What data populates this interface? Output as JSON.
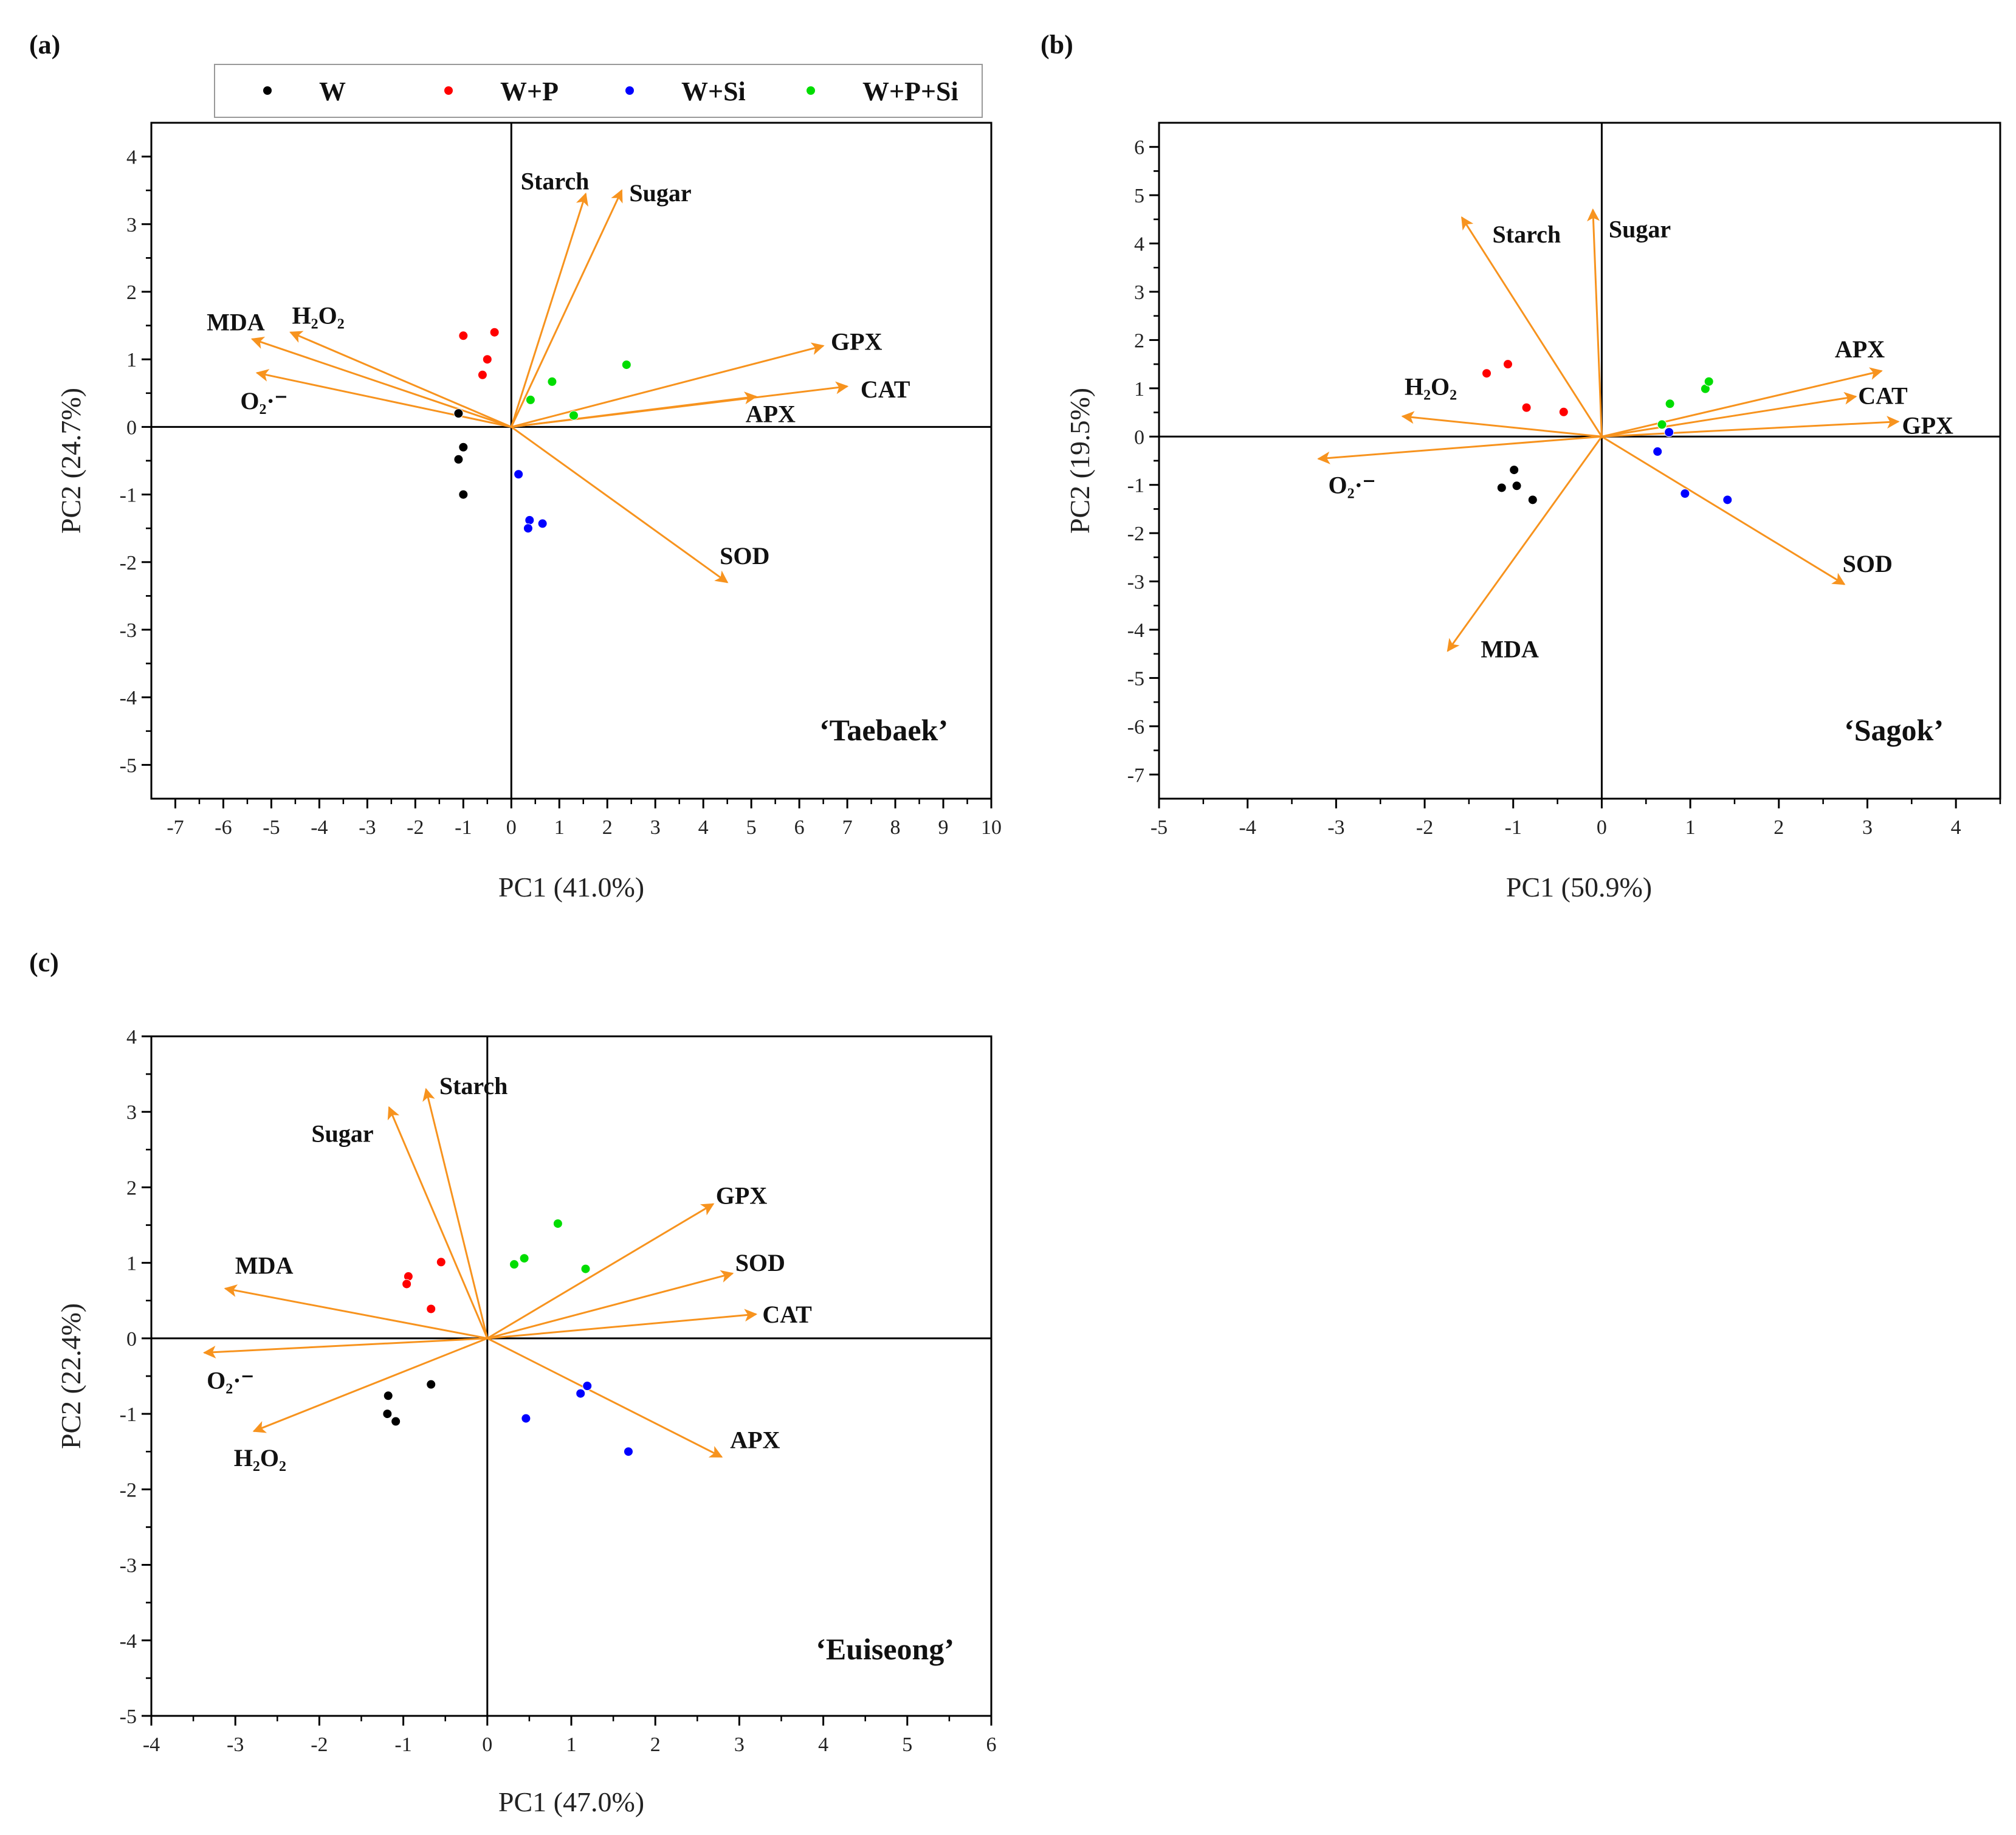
{
  "legend": {
    "entries": [
      {
        "label": "W",
        "color": "#000000"
      },
      {
        "label": "W+P",
        "color": "#FF0000"
      },
      {
        "label": "W+Si",
        "color": "#0000FF"
      },
      {
        "label": "W+P+Si",
        "color": "#00DD00"
      }
    ]
  },
  "arrow_color": "#F7931E",
  "chart_data": [
    {
      "type": "scatter",
      "panel_label": "(a)",
      "cultivar": "‘Taebaek’",
      "xlabel": "PC1 (41.0%)",
      "ylabel": "PC2 (24.7%)",
      "xlim": [
        -7.5,
        10
      ],
      "ylim": [
        -5.5,
        4.5
      ],
      "xticks": [
        -7,
        -6,
        -5,
        -4,
        -3,
        -2,
        -1,
        0,
        1,
        2,
        3,
        4,
        5,
        6,
        7,
        8,
        9,
        10
      ],
      "yticks": [
        -5,
        -4,
        -3,
        -2,
        -1,
        0,
        1,
        2,
        3,
        4
      ],
      "loadings": [
        {
          "name": "Starch",
          "x": 1.55,
          "y": 3.45
        },
        {
          "name": "Sugar",
          "x": 2.3,
          "y": 3.5
        },
        {
          "name": "MDA",
          "x": -5.4,
          "y": 1.3
        },
        {
          "name": "H₂O₂",
          "x": -4.6,
          "y": 1.4
        },
        {
          "name": "O₂·⁻",
          "x": -5.3,
          "y": 0.8
        },
        {
          "name": "GPX",
          "x": 6.5,
          "y": 1.2
        },
        {
          "name": "CAT",
          "x": 7.0,
          "y": 0.6
        },
        {
          "name": "APX",
          "x": 5.1,
          "y": 0.45
        },
        {
          "name": "SOD",
          "x": 4.5,
          "y": -2.3
        }
      ],
      "series": [
        {
          "name": "W",
          "points": [
            [
              -1.1,
              0.2
            ],
            [
              -1.0,
              -0.3
            ],
            [
              -1.1,
              -0.48
            ],
            [
              -1.0,
              -1.0
            ]
          ]
        },
        {
          "name": "W+P",
          "points": [
            [
              -1.0,
              1.35
            ],
            [
              -0.35,
              1.4
            ],
            [
              -0.5,
              1.0
            ],
            [
              -0.6,
              0.77
            ]
          ]
        },
        {
          "name": "W+Si",
          "points": [
            [
              0.15,
              -0.7
            ],
            [
              0.38,
              -1.38
            ],
            [
              0.35,
              -1.5
            ],
            [
              0.65,
              -1.43
            ]
          ]
        },
        {
          "name": "W+P+Si",
          "points": [
            [
              0.4,
              0.4
            ],
            [
              0.85,
              0.67
            ],
            [
              1.3,
              0.17
            ],
            [
              2.4,
              0.92
            ]
          ]
        }
      ]
    },
    {
      "type": "scatter",
      "panel_label": "(b)",
      "cultivar": "‘Sagok’",
      "xlabel": "PC1 (50.9%)",
      "ylabel": "PC2 (19.5%)",
      "xlim": [
        -5,
        4.5
      ],
      "ylim": [
        -7.5,
        6.5
      ],
      "xticks": [
        -5,
        -4,
        -3,
        -2,
        -1,
        0,
        1,
        2,
        3,
        4
      ],
      "yticks": [
        -7,
        -6,
        -5,
        -4,
        -3,
        -2,
        -1,
        0,
        1,
        2,
        3,
        4,
        5,
        6
      ],
      "loadings": [
        {
          "name": "Starch",
          "x": -1.58,
          "y": 4.54
        },
        {
          "name": "Sugar",
          "x": -0.1,
          "y": 4.7
        },
        {
          "name": "H₂O₂",
          "x": -2.25,
          "y": 0.42
        },
        {
          "name": "O₂·⁻",
          "x": -3.2,
          "y": -0.46
        },
        {
          "name": "MDA",
          "x": -1.74,
          "y": -4.44
        },
        {
          "name": "APX",
          "x": 3.16,
          "y": 1.36
        },
        {
          "name": "CAT",
          "x": 2.87,
          "y": 0.83
        },
        {
          "name": "GPX",
          "x": 3.35,
          "y": 0.31
        },
        {
          "name": "SOD",
          "x": 2.74,
          "y": -3.06
        }
      ],
      "series": [
        {
          "name": "W",
          "points": [
            [
              -0.99,
              -0.69
            ],
            [
              -1.13,
              -1.06
            ],
            [
              -0.96,
              -1.02
            ],
            [
              -0.78,
              -1.31
            ]
          ]
        },
        {
          "name": "W+P",
          "points": [
            [
              -1.3,
              1.31
            ],
            [
              -1.06,
              1.5
            ],
            [
              -0.85,
              0.6
            ],
            [
              -0.43,
              0.51
            ]
          ]
        },
        {
          "name": "W+Si",
          "points": [
            [
              0.76,
              0.09
            ],
            [
              0.63,
              -0.31
            ],
            [
              0.94,
              -1.18
            ],
            [
              1.42,
              -1.31
            ]
          ]
        },
        {
          "name": "W+P+Si",
          "points": [
            [
              0.68,
              0.25
            ],
            [
              0.77,
              0.68
            ],
            [
              1.17,
              0.99
            ],
            [
              1.21,
              1.14
            ]
          ]
        }
      ]
    },
    {
      "type": "scatter",
      "panel_label": "(c)",
      "cultivar": "‘Euiseong’",
      "xlabel": "PC1 (47.0%)",
      "ylabel": "PC2 (22.4%)",
      "xlim": [
        -4,
        6
      ],
      "ylim": [
        -5,
        4
      ],
      "xticks": [
        -4,
        -3,
        -2,
        -1,
        0,
        1,
        2,
        3,
        4,
        5,
        6
      ],
      "yticks": [
        -5,
        -4,
        -3,
        -2,
        -1,
        0,
        1,
        2,
        3,
        4
      ],
      "loadings": [
        {
          "name": "Starch",
          "x": -0.73,
          "y": 3.3
        },
        {
          "name": "Sugar",
          "x": -1.17,
          "y": 3.06
        },
        {
          "name": "MDA",
          "x": -3.12,
          "y": 0.66
        },
        {
          "name": "O₂·⁻",
          "x": -3.37,
          "y": -0.19
        },
        {
          "name": "H₂O₂",
          "x": -2.78,
          "y": -1.23
        },
        {
          "name": "GPX",
          "x": 2.69,
          "y": 1.78
        },
        {
          "name": "SOD",
          "x": 2.92,
          "y": 0.86
        },
        {
          "name": "CAT",
          "x": 3.2,
          "y": 0.32
        },
        {
          "name": "APX",
          "x": 2.79,
          "y": -1.57
        }
      ],
      "series": [
        {
          "name": "W",
          "points": [
            [
              -0.67,
              -0.61
            ],
            [
              -1.18,
              -0.76
            ],
            [
              -1.19,
              -1.0
            ],
            [
              -1.09,
              -1.1
            ]
          ]
        },
        {
          "name": "W+P",
          "points": [
            [
              -0.55,
              1.01
            ],
            [
              -0.94,
              0.82
            ],
            [
              -0.96,
              0.72
            ],
            [
              -0.67,
              0.39
            ]
          ]
        },
        {
          "name": "W+Si",
          "points": [
            [
              1.19,
              -0.63
            ],
            [
              1.11,
              -0.73
            ],
            [
              0.46,
              -1.06
            ],
            [
              1.68,
              -1.5
            ]
          ]
        },
        {
          "name": "W+P+Si",
          "points": [
            [
              0.84,
              1.52
            ],
            [
              0.32,
              0.98
            ],
            [
              0.44,
              1.06
            ],
            [
              1.17,
              0.92
            ]
          ]
        }
      ]
    }
  ]
}
